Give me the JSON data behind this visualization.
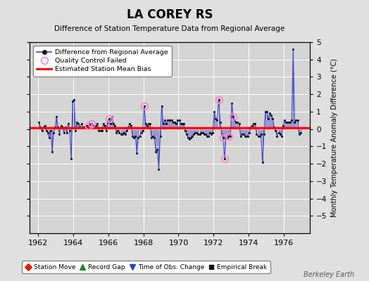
{
  "title": "LA COREY RS",
  "subtitle": "Difference of Station Temperature Data from Regional Average",
  "ylabel_right": "Monthly Temperature Anomaly Difference (°C)",
  "bias_value": 0.05,
  "xlim": [
    1961.5,
    1977.5
  ],
  "ylim": [
    -6,
    5
  ],
  "yticks": [
    -5,
    -4,
    -3,
    -2,
    -1,
    0,
    1,
    2,
    3,
    4,
    5
  ],
  "xticks": [
    1962,
    1964,
    1966,
    1968,
    1970,
    1972,
    1974,
    1976
  ],
  "background_color": "#e0e0e0",
  "plot_bg_color": "#d4d4d4",
  "grid_color": "#ffffff",
  "line_color": "#4444cc",
  "dot_color": "#111111",
  "bias_color": "#ff0000",
  "qc_color": "#ff88cc",
  "watermark": "Berkeley Earth",
  "time_series": [
    [
      1962.042,
      0.4
    ],
    [
      1962.125,
      0.1
    ],
    [
      1962.208,
      -0.1
    ],
    [
      1962.292,
      0.1
    ],
    [
      1962.375,
      0.2
    ],
    [
      1962.458,
      -0.1
    ],
    [
      1962.542,
      -0.2
    ],
    [
      1962.625,
      -0.5
    ],
    [
      1962.708,
      -0.1
    ],
    [
      1962.792,
      -1.3
    ],
    [
      1962.875,
      -0.2
    ],
    [
      1962.958,
      0.1
    ],
    [
      1963.042,
      0.7
    ],
    [
      1963.125,
      0.1
    ],
    [
      1963.208,
      -0.3
    ],
    [
      1963.292,
      0.2
    ],
    [
      1963.375,
      0.1
    ],
    [
      1963.458,
      -0.2
    ],
    [
      1963.542,
      0.1
    ],
    [
      1963.625,
      -0.2
    ],
    [
      1963.708,
      0.3
    ],
    [
      1963.792,
      -0.1
    ],
    [
      1963.875,
      -1.7
    ],
    [
      1963.958,
      1.6
    ],
    [
      1964.042,
      1.7
    ],
    [
      1964.125,
      -0.1
    ],
    [
      1964.208,
      0.4
    ],
    [
      1964.292,
      0.3
    ],
    [
      1964.375,
      0.1
    ],
    [
      1964.458,
      0.3
    ],
    [
      1964.542,
      0.1
    ],
    [
      1964.625,
      0.1
    ],
    [
      1964.708,
      0.2
    ],
    [
      1964.792,
      0.2
    ],
    [
      1964.875,
      0.2
    ],
    [
      1964.958,
      0.3
    ],
    [
      1965.042,
      0.3
    ],
    [
      1965.125,
      0.2
    ],
    [
      1965.208,
      0.2
    ],
    [
      1965.292,
      0.2
    ],
    [
      1965.375,
      0.3
    ],
    [
      1965.458,
      -0.1
    ],
    [
      1965.542,
      -0.1
    ],
    [
      1965.625,
      -0.1
    ],
    [
      1965.708,
      0.3
    ],
    [
      1965.792,
      0.2
    ],
    [
      1965.875,
      -0.1
    ],
    [
      1965.958,
      0.4
    ],
    [
      1966.042,
      0.6
    ],
    [
      1966.125,
      0.3
    ],
    [
      1966.208,
      0.7
    ],
    [
      1966.292,
      0.3
    ],
    [
      1966.375,
      0.2
    ],
    [
      1966.458,
      -0.2
    ],
    [
      1966.542,
      -0.1
    ],
    [
      1966.625,
      -0.2
    ],
    [
      1966.708,
      -0.3
    ],
    [
      1966.792,
      -0.3
    ],
    [
      1966.875,
      -0.2
    ],
    [
      1966.958,
      -0.3
    ],
    [
      1967.042,
      -0.1
    ],
    [
      1967.125,
      0.1
    ],
    [
      1967.208,
      0.3
    ],
    [
      1967.292,
      0.2
    ],
    [
      1967.375,
      -0.4
    ],
    [
      1967.458,
      -0.5
    ],
    [
      1967.542,
      -0.4
    ],
    [
      1967.625,
      -1.4
    ],
    [
      1967.708,
      -0.5
    ],
    [
      1967.792,
      -0.4
    ],
    [
      1967.875,
      -0.2
    ],
    [
      1967.958,
      -0.1
    ],
    [
      1968.042,
      1.3
    ],
    [
      1968.125,
      0.3
    ],
    [
      1968.208,
      0.2
    ],
    [
      1968.292,
      0.3
    ],
    [
      1968.375,
      0.3
    ],
    [
      1968.458,
      -0.5
    ],
    [
      1968.542,
      -0.4
    ],
    [
      1968.625,
      -0.5
    ],
    [
      1968.708,
      -1.3
    ],
    [
      1968.792,
      -1.2
    ],
    [
      1968.875,
      -2.3
    ],
    [
      1968.958,
      -0.4
    ],
    [
      1969.042,
      1.3
    ],
    [
      1969.125,
      0.3
    ],
    [
      1969.208,
      0.5
    ],
    [
      1969.292,
      0.3
    ],
    [
      1969.375,
      0.5
    ],
    [
      1969.458,
      0.5
    ],
    [
      1969.542,
      0.5
    ],
    [
      1969.625,
      0.5
    ],
    [
      1969.708,
      0.4
    ],
    [
      1969.792,
      0.4
    ],
    [
      1969.875,
      0.3
    ],
    [
      1969.958,
      0.5
    ],
    [
      1970.042,
      0.5
    ],
    [
      1970.125,
      0.3
    ],
    [
      1970.208,
      0.3
    ],
    [
      1970.292,
      0.3
    ],
    [
      1970.375,
      -0.1
    ],
    [
      1970.458,
      -0.3
    ],
    [
      1970.542,
      -0.5
    ],
    [
      1970.625,
      -0.6
    ],
    [
      1970.708,
      -0.5
    ],
    [
      1970.792,
      -0.4
    ],
    [
      1970.875,
      -0.3
    ],
    [
      1970.958,
      -0.2
    ],
    [
      1971.042,
      -0.2
    ],
    [
      1971.125,
      -0.3
    ],
    [
      1971.208,
      -0.3
    ],
    [
      1971.292,
      -0.2
    ],
    [
      1971.375,
      -0.2
    ],
    [
      1971.458,
      -0.3
    ],
    [
      1971.542,
      -0.3
    ],
    [
      1971.625,
      -0.4
    ],
    [
      1971.708,
      -0.4
    ],
    [
      1971.792,
      -0.2
    ],
    [
      1971.875,
      -0.3
    ],
    [
      1971.958,
      -0.2
    ],
    [
      1972.042,
      1.0
    ],
    [
      1972.125,
      0.6
    ],
    [
      1972.208,
      0.5
    ],
    [
      1972.292,
      1.7
    ],
    [
      1972.375,
      0.4
    ],
    [
      1972.458,
      -0.3
    ],
    [
      1972.542,
      -0.5
    ],
    [
      1972.625,
      -1.7
    ],
    [
      1972.708,
      -0.5
    ],
    [
      1972.792,
      -0.5
    ],
    [
      1972.875,
      -0.4
    ],
    [
      1972.958,
      -0.4
    ],
    [
      1973.042,
      1.5
    ],
    [
      1973.125,
      0.7
    ],
    [
      1973.208,
      0.5
    ],
    [
      1973.292,
      0.4
    ],
    [
      1973.375,
      0.4
    ],
    [
      1973.458,
      0.3
    ],
    [
      1973.542,
      -0.4
    ],
    [
      1973.625,
      -0.3
    ],
    [
      1973.708,
      -0.3
    ],
    [
      1973.792,
      -0.4
    ],
    [
      1973.875,
      -0.4
    ],
    [
      1973.958,
      -0.4
    ],
    [
      1974.042,
      -0.2
    ],
    [
      1974.125,
      0.1
    ],
    [
      1974.208,
      0.2
    ],
    [
      1974.292,
      0.3
    ],
    [
      1974.375,
      0.3
    ],
    [
      1974.458,
      -0.3
    ],
    [
      1974.542,
      -0.4
    ],
    [
      1974.625,
      -0.4
    ],
    [
      1974.708,
      -0.3
    ],
    [
      1974.792,
      -1.9
    ],
    [
      1974.875,
      -0.3
    ],
    [
      1974.958,
      1.0
    ],
    [
      1975.042,
      1.0
    ],
    [
      1975.125,
      0.6
    ],
    [
      1975.208,
      0.9
    ],
    [
      1975.292,
      0.8
    ],
    [
      1975.375,
      0.6
    ],
    [
      1975.458,
      0.1
    ],
    [
      1975.542,
      -0.1
    ],
    [
      1975.625,
      -0.4
    ],
    [
      1975.708,
      -0.2
    ],
    [
      1975.792,
      -0.3
    ],
    [
      1975.875,
      -0.4
    ],
    [
      1975.958,
      0.2
    ],
    [
      1976.042,
      0.5
    ],
    [
      1976.125,
      0.4
    ],
    [
      1976.208,
      0.4
    ],
    [
      1976.292,
      0.4
    ],
    [
      1976.375,
      0.4
    ],
    [
      1976.458,
      0.5
    ],
    [
      1976.542,
      4.6
    ],
    [
      1976.625,
      0.4
    ],
    [
      1976.708,
      0.5
    ],
    [
      1976.792,
      0.5
    ],
    [
      1976.875,
      -0.3
    ],
    [
      1976.958,
      -0.2
    ]
  ],
  "qc_failed": [
    [
      1964.875,
      0.2
    ],
    [
      1965.042,
      0.3
    ],
    [
      1966.042,
      0.6
    ],
    [
      1968.042,
      1.3
    ],
    [
      1972.292,
      1.7
    ],
    [
      1972.542,
      -0.5
    ],
    [
      1972.625,
      -1.7
    ],
    [
      1972.875,
      -0.4
    ],
    [
      1973.125,
      0.7
    ]
  ]
}
